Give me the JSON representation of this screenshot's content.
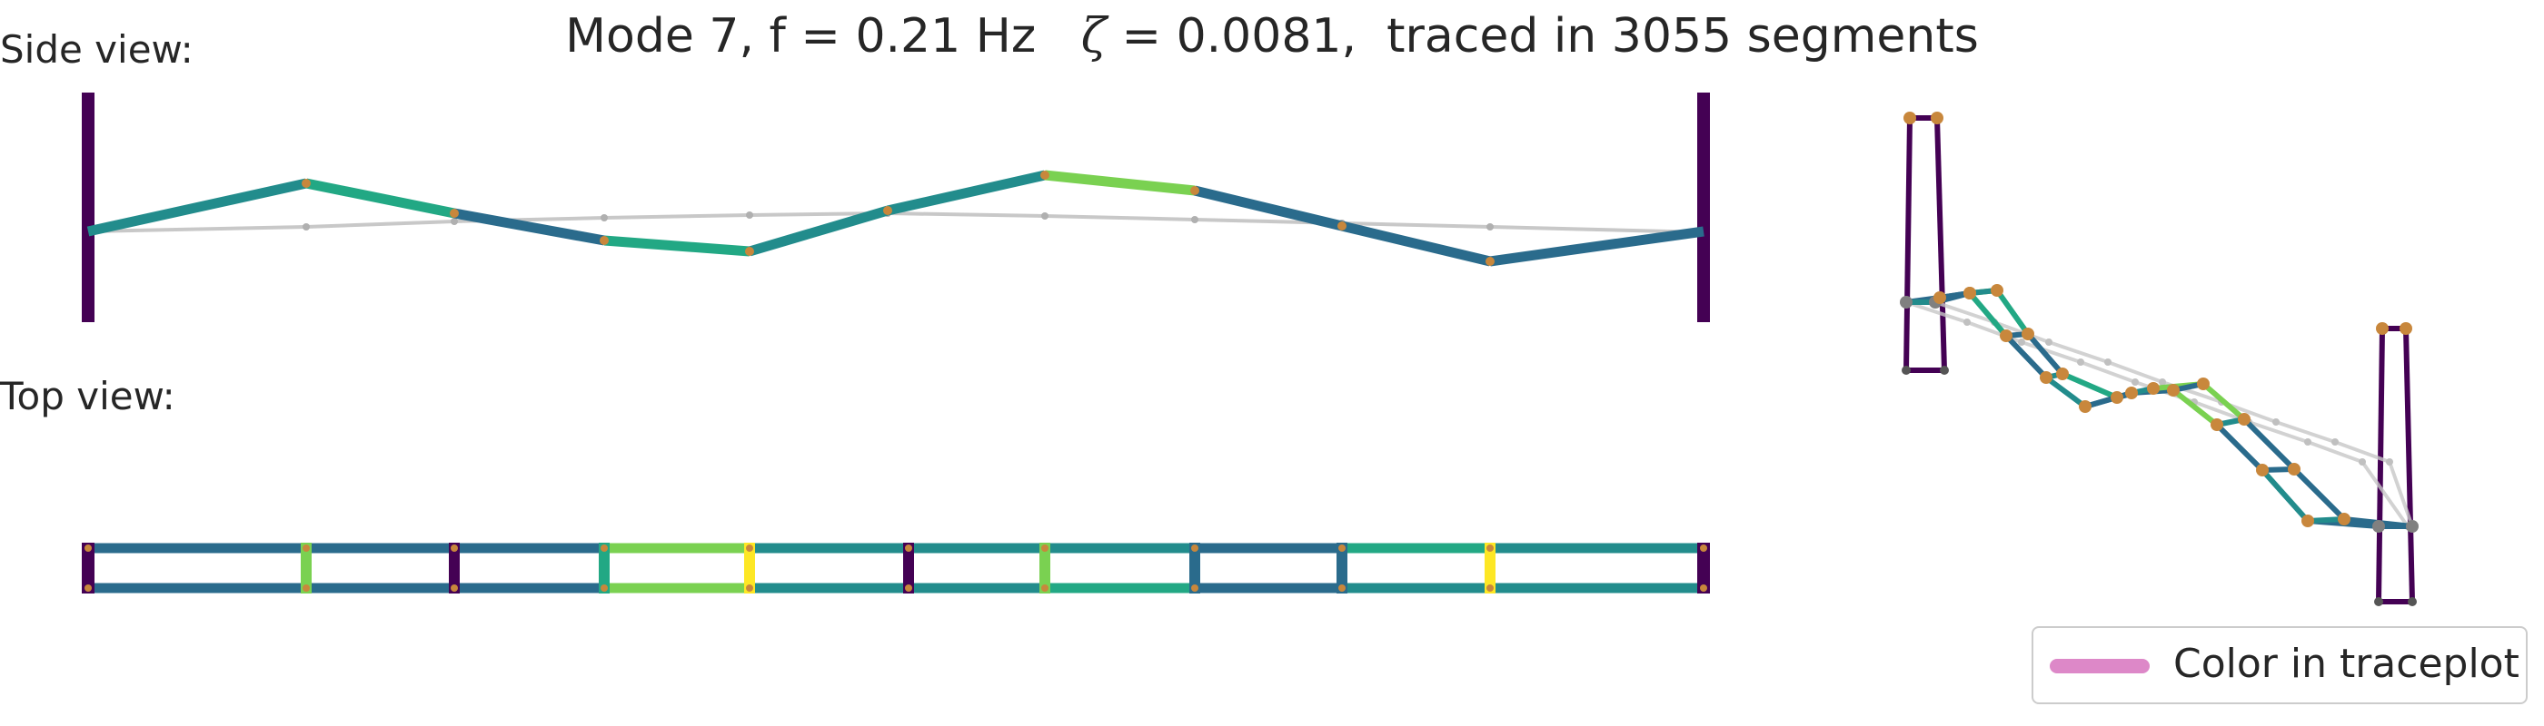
{
  "title": {
    "before_zeta": "Mode 7, f = 0.21 Hz   ",
    "zeta_symbol": "ζ",
    "after_zeta": " = 0.0081,  traced in 3055 segments"
  },
  "panels": {
    "side_label": "Side view:",
    "top_label": "Top view:"
  },
  "legend": {
    "label": "Color in traceplot",
    "swatch_color": "#dd88c8"
  },
  "colors": {
    "tower": "#440154",
    "undeformed": "#c8c8c8",
    "node": "#c8873c",
    "node_grey": "#808080",
    "palette": [
      "#440154",
      "#2a6b8c",
      "#228c8c",
      "#22a884",
      "#7ad151",
      "#fde725"
    ]
  }
}
